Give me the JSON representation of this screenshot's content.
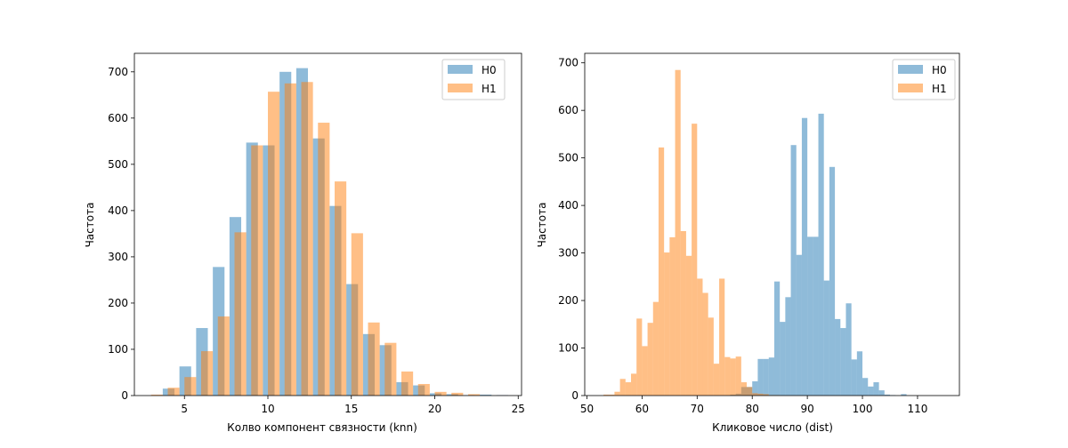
{
  "colors": {
    "H0": "#1f77b4",
    "H1": "#ff7f0e",
    "alpha": 0.5
  },
  "chart_data": [
    {
      "type": "bar",
      "subtype": "histogram",
      "xlabel": "Колво компонент связности (knn)",
      "ylabel": "Частота",
      "xlim": [
        2.0,
        25.2
      ],
      "ylim": [
        0,
        740
      ],
      "xticks": [
        5,
        10,
        15,
        20,
        25
      ],
      "yticks": [
        0,
        100,
        200,
        300,
        400,
        500,
        600,
        700
      ],
      "legend_position": "top-right",
      "series": [
        {
          "name": "H0",
          "bin_width": 0.7,
          "x": [
            3.7,
            4.7,
            5.7,
            6.7,
            7.7,
            8.7,
            9.7,
            10.7,
            11.7,
            12.7,
            13.7,
            14.7,
            15.7,
            16.7,
            17.7,
            18.7,
            19.7,
            20.7,
            21.7,
            22.7,
            23.7
          ],
          "values": [
            15,
            63,
            146,
            278,
            386,
            547,
            541,
            700,
            708,
            556,
            410,
            241,
            133,
            109,
            29,
            22,
            5,
            3,
            1,
            2,
            1
          ]
        },
        {
          "name": "H1",
          "bin_width": 0.7,
          "x": [
            3.0,
            4.0,
            5.0,
            6.0,
            7.0,
            8.0,
            9.0,
            10.0,
            11.0,
            12.0,
            13.0,
            14.0,
            15.0,
            16.0,
            17.0,
            18.0,
            19.0,
            20.0,
            21.0,
            22.0
          ],
          "values": [
            2,
            17,
            40,
            96,
            171,
            353,
            541,
            657,
            675,
            678,
            590,
            463,
            351,
            158,
            114,
            52,
            25,
            8,
            6,
            3
          ]
        }
      ]
    },
    {
      "type": "bar",
      "subtype": "histogram",
      "xlabel": "Кликовое число (dist)",
      "ylabel": "Частота",
      "xlim": [
        49.6,
        117.6
      ],
      "ylim": [
        0,
        720
      ],
      "xticks": [
        50,
        60,
        70,
        80,
        90,
        100,
        110
      ],
      "yticks": [
        0,
        100,
        200,
        300,
        400,
        500,
        600,
        700
      ],
      "legend_position": "top-right",
      "series": [
        {
          "name": "H0",
          "bin_start": 76,
          "bin_width": 1.0,
          "values": [
            2,
            4,
            18,
            18,
            30,
            77,
            77,
            80,
            240,
            155,
            207,
            527,
            296,
            584,
            334,
            334,
            593,
            242,
            481,
            161,
            142,
            194,
            76,
            93,
            37,
            19,
            28,
            11,
            2,
            1,
            0,
            3
          ]
        },
        {
          "name": "H1",
          "bin_start": 53,
          "bin_width": 1.0,
          "values": [
            2,
            2,
            8,
            35,
            28,
            46,
            162,
            104,
            153,
            197,
            522,
            301,
            333,
            685,
            346,
            294,
            572,
            246,
            216,
            164,
            67,
            246,
            81,
            78,
            82,
            28,
            18,
            5,
            4,
            3,
            1,
            1
          ]
        }
      ]
    }
  ]
}
